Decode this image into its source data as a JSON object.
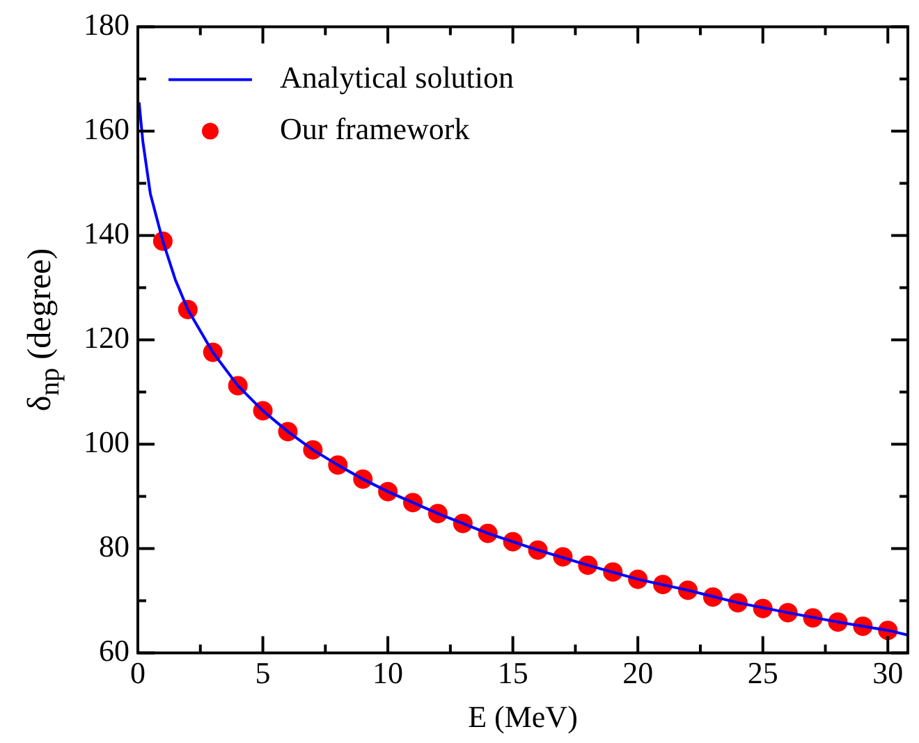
{
  "chart_data": {
    "type": "line",
    "xlabel": "E (MeV)",
    "ylabel": "δ$_{np}$ (degree)",
    "xlim": [
      0,
      30.8
    ],
    "ylim": [
      60,
      180
    ],
    "xticks": [
      0,
      {
        "value": 2.5,
        "label": null
      },
      5,
      {
        "value": 7.5,
        "label": null
      },
      10,
      {
        "value": 12.5,
        "label": null
      },
      15,
      {
        "value": 17.5,
        "label": null
      },
      20,
      {
        "value": 22.5,
        "label": null
      },
      25,
      {
        "value": 27.5,
        "label": null
      },
      30
    ],
    "yticks": [
      60,
      {
        "value": 70,
        "label": null
      },
      80,
      {
        "value": 90,
        "label": null
      },
      100,
      {
        "value": 110,
        "label": null
      },
      120,
      {
        "value": 130,
        "label": null
      },
      140,
      {
        "value": 150,
        "label": null
      },
      160,
      {
        "value": 170,
        "label": null
      },
      180
    ],
    "grid": false,
    "legend": "top left",
    "series": [
      {
        "name": "Analytical solution",
        "type": "line",
        "color": "#0000ff",
        "marker": "none",
        "line_style": "solid",
        "x": [
          0.05,
          0.2,
          0.5,
          1,
          1.5,
          2,
          3,
          4,
          5,
          6,
          7,
          8,
          9,
          10,
          12,
          14,
          16,
          18,
          20,
          22,
          24,
          26,
          28,
          30,
          30.8
        ],
        "values": [
          165.5,
          158,
          148,
          138.9,
          131.5,
          125.8,
          117.6,
          111.2,
          106.4,
          102.4,
          98.9,
          96,
          93.3,
          90.9,
          86.7,
          82.9,
          79.7,
          76.8,
          74.1,
          72,
          69.6,
          67.7,
          65.9,
          64.3,
          63.4
        ]
      },
      {
        "name": "Our framework",
        "type": "scatter",
        "color": "#ff0000",
        "marker": "circle",
        "x": [
          1,
          2,
          3,
          4,
          5,
          6,
          7,
          8,
          9,
          10,
          11,
          12,
          13,
          14,
          15,
          16,
          17,
          18,
          19,
          20,
          21,
          22,
          23,
          24,
          25,
          26,
          27,
          28,
          29,
          30
        ],
        "values": [
          138.9,
          125.8,
          117.6,
          111.2,
          106.4,
          102.4,
          98.9,
          96,
          93.3,
          90.9,
          88.8,
          86.7,
          84.8,
          82.9,
          81.3,
          79.7,
          78.4,
          76.8,
          75.5,
          74.1,
          73.1,
          72,
          70.7,
          69.6,
          68.5,
          67.7,
          66.7,
          65.9,
          65.1,
          64.3
        ]
      }
    ]
  }
}
